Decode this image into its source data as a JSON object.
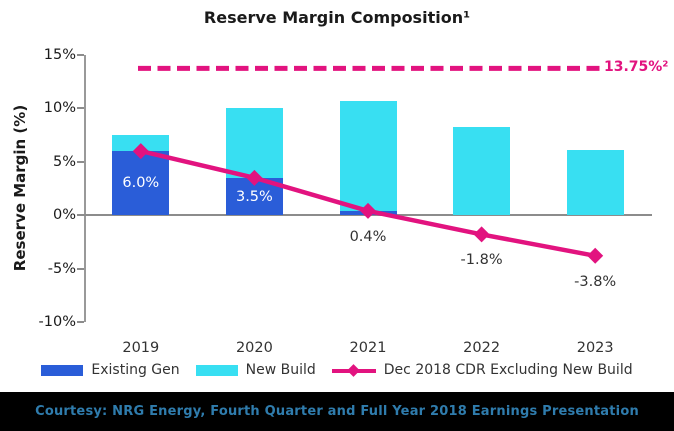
{
  "header": {
    "title": "Reserve Margin Composition¹"
  },
  "chart_data": {
    "type": "bar",
    "subtype": "stacked-bar-with-line-overlay",
    "title": "Reserve Margin Composition¹",
    "xlabel": "",
    "ylabel": "Reserve Margin (%)",
    "ylim": [
      -10,
      15
    ],
    "grid": false,
    "legend_position": "bottom",
    "y_ticks": [
      {
        "value": 15,
        "label": "15%"
      },
      {
        "value": 10,
        "label": "10%"
      },
      {
        "value": 5,
        "label": "5%"
      },
      {
        "value": 0,
        "label": "0%"
      },
      {
        "value": -5,
        "label": "-5%"
      },
      {
        "value": -10,
        "label": "-10%"
      }
    ],
    "categories": [
      "2019",
      "2020",
      "2021",
      "2022",
      "2023"
    ],
    "series": [
      {
        "name": "Existing Gen",
        "type": "bar",
        "color": "#2A5DD8",
        "values": [
          6.0,
          3.5,
          0.4,
          0,
          0
        ]
      },
      {
        "name": "New Build",
        "type": "bar",
        "color": "#38DFF2",
        "values": [
          1.5,
          6.5,
          10.3,
          8.3,
          6.1
        ]
      },
      {
        "name": "Dec 2018 CDR Excluding New Build",
        "type": "line",
        "color": "#E2137F",
        "marker": "diamond",
        "values": [
          6.0,
          3.5,
          0.4,
          -1.8,
          -3.8
        ]
      }
    ],
    "stack_totals": [
      7.5,
      10.0,
      10.7,
      8.3,
      6.1
    ],
    "point_labels": [
      {
        "text": "6.0%",
        "category": "2019",
        "placement": "inside-bar",
        "color": "#FFFFFF"
      },
      {
        "text": "3.5%",
        "category": "2020",
        "placement": "inside-bar",
        "color": "#FFFFFF"
      },
      {
        "text": "0.4%",
        "category": "2021",
        "placement": "below-axis",
        "color": "#333333"
      },
      {
        "text": "-1.8%",
        "category": "2022",
        "placement": "below-axis",
        "color": "#333333"
      },
      {
        "text": "-3.8%",
        "category": "2023",
        "placement": "below-axis",
        "color": "#333333"
      }
    ],
    "ref_line": {
      "value": 13.75,
      "label": "13.75%²",
      "style": "dashed",
      "color": "#E2137F"
    }
  },
  "legend": {
    "items": [
      {
        "label": "Existing Gen",
        "swatch": "bar",
        "color": "#2A5DD8"
      },
      {
        "label": "New Build",
        "swatch": "bar",
        "color": "#38DFF2"
      },
      {
        "label": "Dec 2018 CDR Excluding New Build",
        "swatch": "line-diamond",
        "color": "#E2137F"
      }
    ]
  },
  "footer": {
    "text": "Courtesy: NRG Energy, Fourth Quarter and Full Year 2018 Earnings Presentation",
    "bar_color": "#000000",
    "text_color": "#2F7CAD"
  },
  "colors": {
    "existing_gen": "#2A5DD8",
    "new_build": "#38DFF2",
    "cdr_line": "#E2137F",
    "axis": "#8C8C8C",
    "text": "#1A1A1A"
  }
}
